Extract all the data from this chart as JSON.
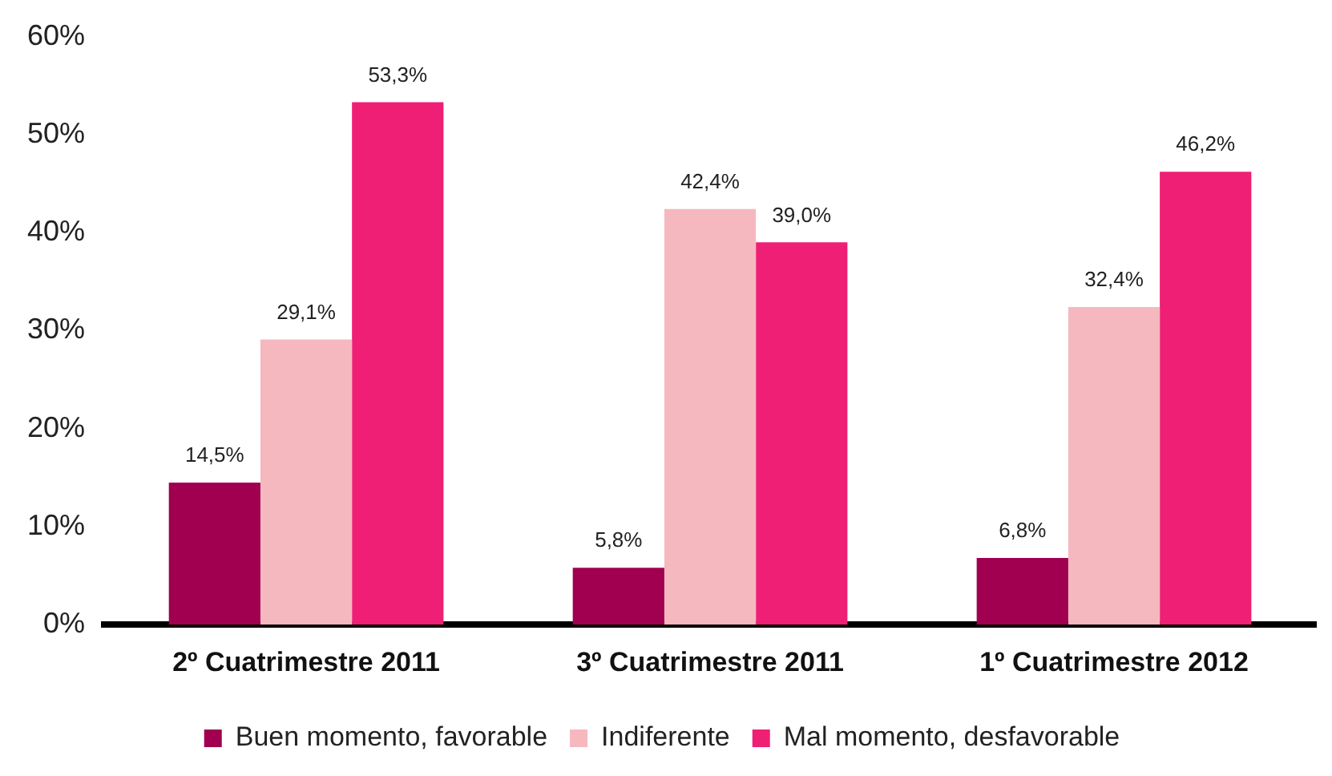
{
  "chart_data": {
    "type": "bar",
    "categories": [
      "2º Cuatrimestre 2011",
      "3º Cuatrimestre 2011",
      "1º Cuatrimestre 2012"
    ],
    "series": [
      {
        "name": "Buen momento, favorable",
        "color": "#a0004f",
        "values": [
          14.5,
          5.8,
          6.8
        ],
        "value_labels": [
          "14,5%",
          "5,8%",
          "6,8%"
        ]
      },
      {
        "name": "Indiferente",
        "color": "#f5b8bf",
        "values": [
          29.1,
          42.4,
          32.4
        ],
        "value_labels": [
          "29,1%",
          "42,4%",
          "32,4%"
        ]
      },
      {
        "name": "Mal momento, desfavorable",
        "color": "#ee1f74",
        "values": [
          53.3,
          39.0,
          46.2
        ],
        "value_labels": [
          "53,3%",
          "39,0%",
          "46,2%"
        ]
      }
    ],
    "ylim": [
      0,
      60
    ],
    "yticks": [
      {
        "value": 0,
        "label": "0%"
      },
      {
        "value": 10,
        "label": "10%"
      },
      {
        "value": 20,
        "label": "20%"
      },
      {
        "value": 30,
        "label": "30%"
      },
      {
        "value": 40,
        "label": "40%"
      },
      {
        "value": 50,
        "label": "50%"
      },
      {
        "value": 60,
        "label": "60%"
      }
    ],
    "grid": false,
    "legend": "bottom"
  }
}
